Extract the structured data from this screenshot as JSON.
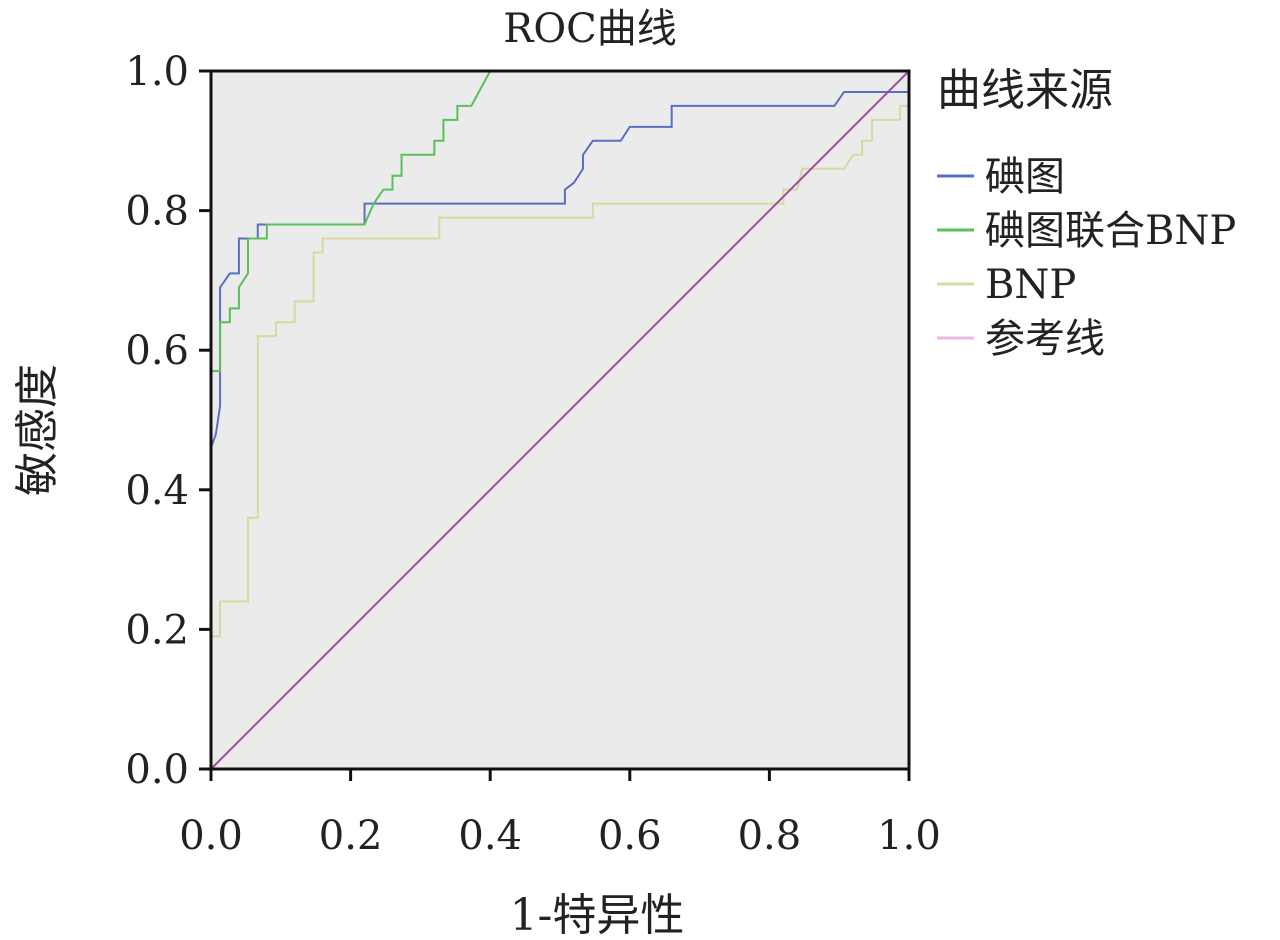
{
  "chart_data": {
    "type": "line",
    "title": "ROC曲线",
    "xlabel": "1-特异性",
    "ylabel": "敏感度",
    "xlim": [
      0,
      1
    ],
    "ylim": [
      0,
      1
    ],
    "xticks": [
      "0.0",
      "0.2",
      "0.4",
      "0.6",
      "0.8",
      "1.0"
    ],
    "yticks": [
      "0.0",
      "0.2",
      "0.4",
      "0.6",
      "0.8",
      "1.0"
    ],
    "grid": false,
    "legend": {
      "title": "曲线来源",
      "placement": "right"
    },
    "series": [
      {
        "name": "碘图",
        "color": "#5a6fc4",
        "points": [
          [
            0,
            0.46
          ],
          [
            0.007,
            0.48
          ],
          [
            0.013,
            0.52
          ],
          [
            0.013,
            0.69
          ],
          [
            0.02,
            0.7
          ],
          [
            0.027,
            0.71
          ],
          [
            0.04,
            0.71
          ],
          [
            0.04,
            0.76
          ],
          [
            0.067,
            0.76
          ],
          [
            0.067,
            0.78
          ],
          [
            0.22,
            0.78
          ],
          [
            0.22,
            0.81
          ],
          [
            0.507,
            0.81
          ],
          [
            0.507,
            0.83
          ],
          [
            0.52,
            0.84
          ],
          [
            0.533,
            0.86
          ],
          [
            0.533,
            0.88
          ],
          [
            0.547,
            0.9
          ],
          [
            0.587,
            0.9
          ],
          [
            0.6,
            0.92
          ],
          [
            0.66,
            0.92
          ],
          [
            0.66,
            0.95
          ],
          [
            0.893,
            0.95
          ],
          [
            0.907,
            0.97
          ],
          [
            1.0,
            0.97
          ]
        ]
      },
      {
        "name": "碘图联合BNP",
        "color": "#5bbf5b",
        "points": [
          [
            0,
            0.57
          ],
          [
            0.013,
            0.57
          ],
          [
            0.013,
            0.64
          ],
          [
            0.027,
            0.64
          ],
          [
            0.027,
            0.66
          ],
          [
            0.04,
            0.66
          ],
          [
            0.04,
            0.69
          ],
          [
            0.053,
            0.71
          ],
          [
            0.053,
            0.76
          ],
          [
            0.08,
            0.76
          ],
          [
            0.08,
            0.78
          ],
          [
            0.22,
            0.78
          ],
          [
            0.233,
            0.81
          ],
          [
            0.247,
            0.83
          ],
          [
            0.26,
            0.83
          ],
          [
            0.26,
            0.85
          ],
          [
            0.273,
            0.85
          ],
          [
            0.273,
            0.88
          ],
          [
            0.32,
            0.88
          ],
          [
            0.32,
            0.9
          ],
          [
            0.333,
            0.9
          ],
          [
            0.333,
            0.93
          ],
          [
            0.353,
            0.93
          ],
          [
            0.353,
            0.95
          ],
          [
            0.373,
            0.95
          ],
          [
            0.4,
            1.0
          ]
        ]
      },
      {
        "name": "BNP",
        "color": "#d8d8a0",
        "points": [
          [
            0,
            0.19
          ],
          [
            0.013,
            0.19
          ],
          [
            0.013,
            0.24
          ],
          [
            0.053,
            0.24
          ],
          [
            0.053,
            0.36
          ],
          [
            0.067,
            0.36
          ],
          [
            0.067,
            0.62
          ],
          [
            0.093,
            0.62
          ],
          [
            0.093,
            0.64
          ],
          [
            0.12,
            0.64
          ],
          [
            0.12,
            0.67
          ],
          [
            0.147,
            0.67
          ],
          [
            0.147,
            0.74
          ],
          [
            0.16,
            0.74
          ],
          [
            0.16,
            0.76
          ],
          [
            0.327,
            0.76
          ],
          [
            0.327,
            0.79
          ],
          [
            0.547,
            0.79
          ],
          [
            0.547,
            0.81
          ],
          [
            0.82,
            0.81
          ],
          [
            0.82,
            0.83
          ],
          [
            0.84,
            0.83
          ],
          [
            0.847,
            0.86
          ],
          [
            0.907,
            0.86
          ],
          [
            0.92,
            0.88
          ],
          [
            0.933,
            0.88
          ],
          [
            0.933,
            0.9
          ],
          [
            0.947,
            0.9
          ],
          [
            0.947,
            0.93
          ],
          [
            0.987,
            0.93
          ],
          [
            0.987,
            0.95
          ],
          [
            1.0,
            0.95
          ]
        ]
      },
      {
        "name": "参考线",
        "color": "#9a4f9a",
        "legend_color": "#e8b8e0",
        "points": [
          [
            0,
            0
          ],
          [
            1,
            1
          ]
        ]
      }
    ]
  }
}
